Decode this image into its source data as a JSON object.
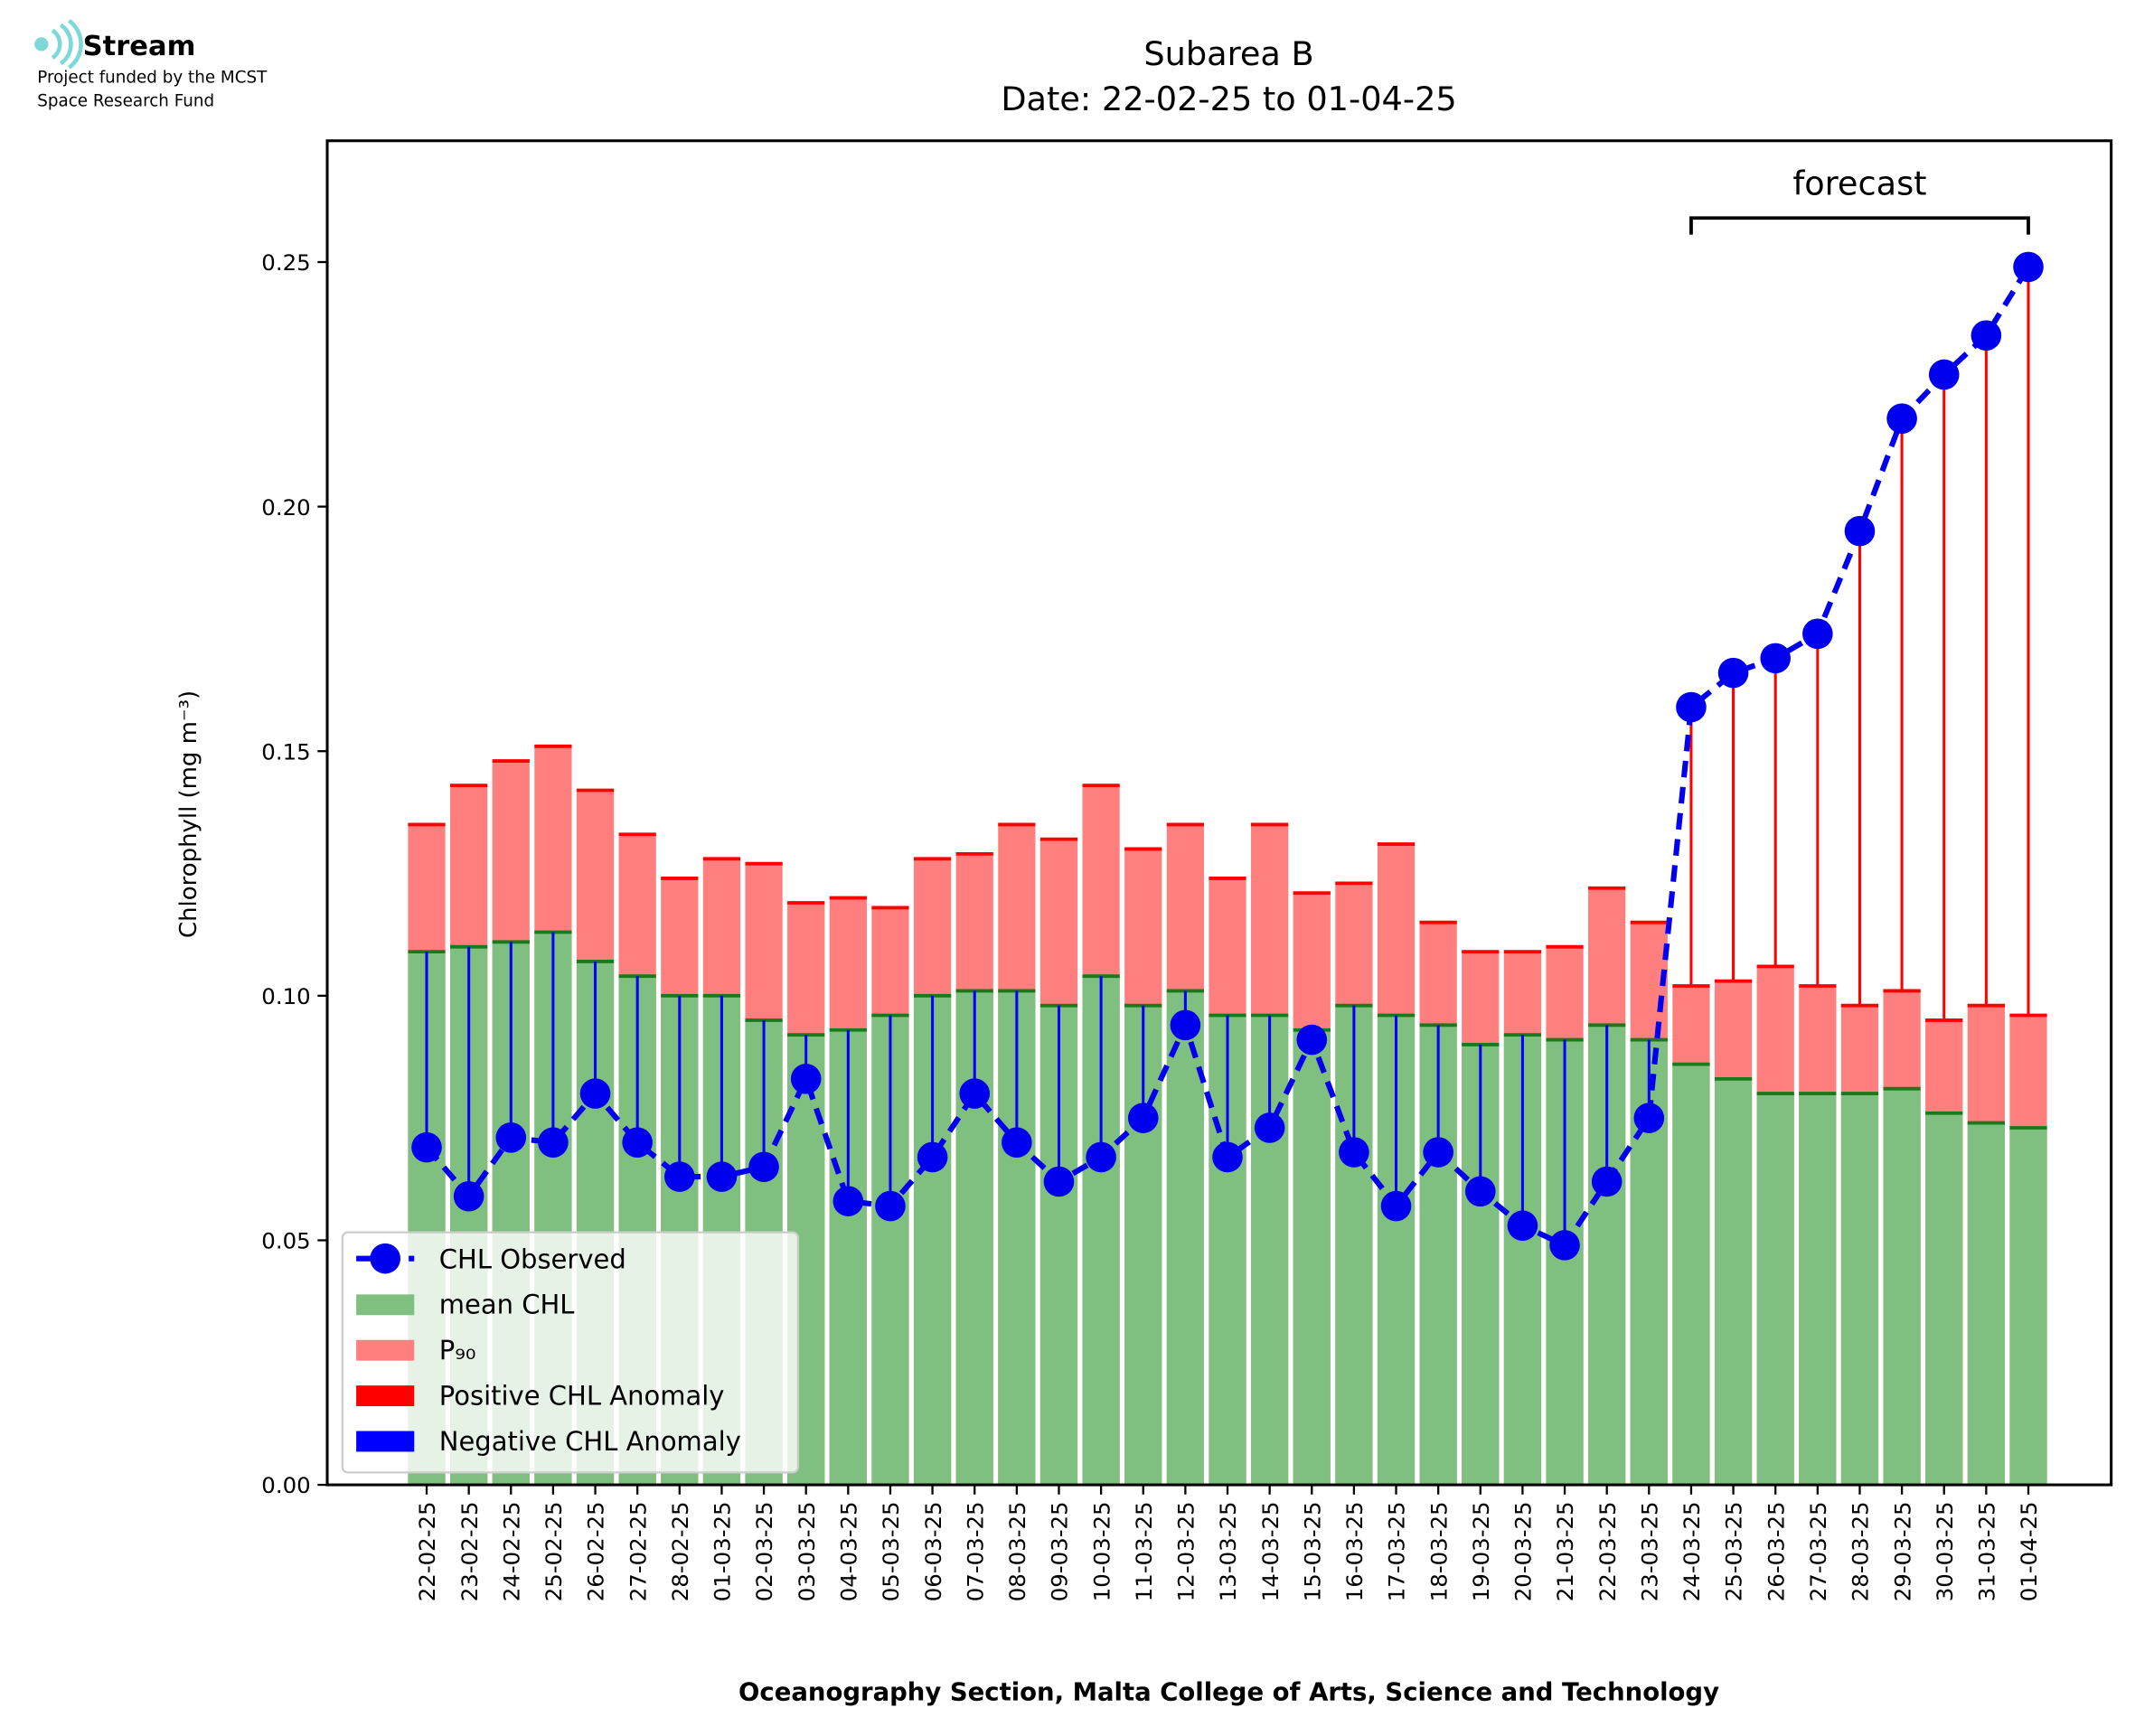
{
  "header": {
    "brand": "Stream",
    "funding": [
      "Project funded by the MCST",
      "Space Research Fund"
    ]
  },
  "chart_data": {
    "type": "bar-line",
    "title": [
      "Subarea B",
      "Date: 22-02-25 to 01-04-25"
    ],
    "y_label": "Chlorophyll (mg m⁻³)",
    "x_label": "Oceanography Section, Malta College of Arts, Science and Technology",
    "categories": [
      "22-02-25",
      "23-02-25",
      "24-02-25",
      "25-02-25",
      "26-02-25",
      "27-02-25",
      "28-02-25",
      "01-03-25",
      "02-03-25",
      "03-03-25",
      "04-03-25",
      "05-03-25",
      "06-03-25",
      "07-03-25",
      "08-03-25",
      "09-03-25",
      "10-03-25",
      "11-03-25",
      "12-03-25",
      "13-03-25",
      "14-03-25",
      "15-03-25",
      "16-03-25",
      "17-03-25",
      "18-03-25",
      "19-03-25",
      "20-03-25",
      "21-03-25",
      "22-03-25",
      "23-03-25",
      "24-03-25",
      "25-03-25",
      "26-03-25",
      "27-03-25",
      "28-03-25",
      "29-03-25",
      "30-03-25",
      "31-03-25",
      "01-04-25"
    ],
    "series": [
      {
        "name": "CHL Observed",
        "color": "#0000ee",
        "style": "line",
        "values": [
          0.069,
          0.059,
          0.071,
          0.07,
          0.08,
          0.07,
          0.063,
          0.063,
          0.065,
          0.083,
          0.058,
          0.057,
          0.067,
          0.08,
          0.07,
          0.062,
          0.067,
          0.075,
          0.094,
          0.067,
          0.073,
          0.091,
          0.068,
          0.057,
          0.068,
          0.06,
          0.053,
          0.049,
          0.062,
          0.075,
          0.159,
          0.166,
          0.169,
          0.174,
          0.195,
          0.218,
          0.227,
          0.235,
          0.249
        ]
      },
      {
        "name": "mean CHL",
        "color": "#7fbf7f",
        "style": "bar",
        "values": [
          0.109,
          0.11,
          0.111,
          0.113,
          0.107,
          0.104,
          0.1,
          0.1,
          0.095,
          0.092,
          0.093,
          0.096,
          0.1,
          0.101,
          0.101,
          0.098,
          0.104,
          0.098,
          0.101,
          0.096,
          0.096,
          0.093,
          0.098,
          0.096,
          0.094,
          0.09,
          0.092,
          0.091,
          0.094,
          0.091,
          0.086,
          0.083,
          0.08,
          0.08,
          0.08,
          0.081,
          0.076,
          0.074,
          0.073
        ]
      },
      {
        "name": "P₉₀",
        "color": "#ff7f7f",
        "style": "bar",
        "values": [
          0.135,
          0.143,
          0.148,
          0.151,
          0.142,
          0.133,
          0.124,
          0.128,
          0.127,
          0.119,
          0.12,
          0.118,
          0.128,
          0.129,
          0.135,
          0.132,
          0.143,
          0.13,
          0.135,
          0.124,
          0.135,
          0.121,
          0.123,
          0.131,
          0.115,
          0.109,
          0.109,
          0.11,
          0.122,
          0.115,
          0.102,
          0.103,
          0.106,
          0.102,
          0.098,
          0.101,
          0.095,
          0.098,
          0.096
        ]
      }
    ],
    "anomalies": [
      {
        "name": "Positive CHL Anomaly",
        "color": "#ff0000"
      },
      {
        "name": "Negative CHL Anomaly",
        "color": "#0000ff"
      }
    ],
    "annotation": {
      "text": "forecast",
      "span": [
        "24-03-25",
        "01-04-25"
      ]
    },
    "ylim": [
      0,
      0.2748
    ],
    "yticks": [
      {
        "value": 0,
        "label": "0.00"
      },
      {
        "value": 0.05,
        "label": "0.05"
      },
      {
        "value": 0.1,
        "label": "0.10"
      },
      {
        "value": 0.15,
        "label": "0.15"
      },
      {
        "value": 0.2,
        "label": "0.20"
      },
      {
        "value": 0.25,
        "label": "0.25"
      }
    ],
    "legend": "lower left"
  }
}
